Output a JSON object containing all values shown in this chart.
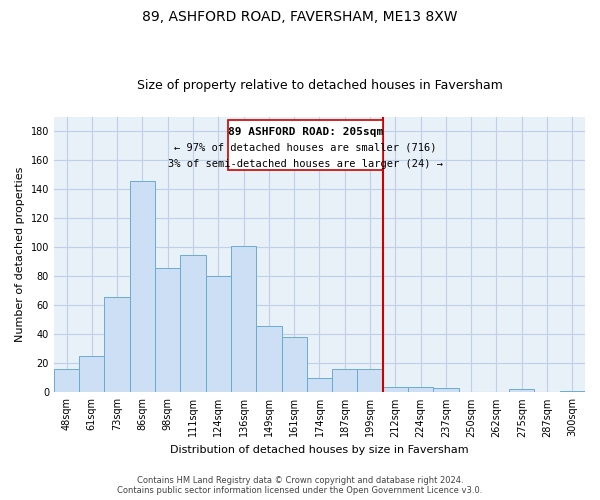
{
  "title": "89, ASHFORD ROAD, FAVERSHAM, ME13 8XW",
  "subtitle": "Size of property relative to detached houses in Faversham",
  "xlabel": "Distribution of detached houses by size in Faversham",
  "ylabel": "Number of detached properties",
  "bin_labels": [
    "48sqm",
    "61sqm",
    "73sqm",
    "86sqm",
    "98sqm",
    "111sqm",
    "124sqm",
    "136sqm",
    "149sqm",
    "161sqm",
    "174sqm",
    "187sqm",
    "199sqm",
    "212sqm",
    "224sqm",
    "237sqm",
    "250sqm",
    "262sqm",
    "275sqm",
    "287sqm",
    "300sqm"
  ],
  "bar_values": [
    16,
    25,
    66,
    146,
    86,
    95,
    80,
    101,
    46,
    38,
    10,
    16,
    16,
    4,
    4,
    3,
    0,
    0,
    2,
    0,
    1
  ],
  "bar_color": "#ccdff4",
  "bar_edge_color": "#6aabd2",
  "vline_color": "#cc0000",
  "vline_x_idx": 13,
  "annotation_line1": "89 ASHFORD ROAD: 205sqm",
  "annotation_line2": "← 97% of detached houses are smaller (716)",
  "annotation_line3": "3% of semi-detached houses are larger (24) →",
  "ylim": [
    0,
    190
  ],
  "yticks": [
    0,
    20,
    40,
    60,
    80,
    100,
    120,
    140,
    160,
    180
  ],
  "footer_line1": "Contains HM Land Registry data © Crown copyright and database right 2024.",
  "footer_line2": "Contains public sector information licensed under the Open Government Licence v3.0.",
  "bg_color": "#ffffff",
  "plot_bg_color": "#e8f0f8",
  "grid_color": "#c0d0e8",
  "title_fontsize": 10,
  "subtitle_fontsize": 9,
  "axis_label_fontsize": 8,
  "tick_fontsize": 7,
  "annotation_fontsize": 8,
  "footer_fontsize": 6
}
